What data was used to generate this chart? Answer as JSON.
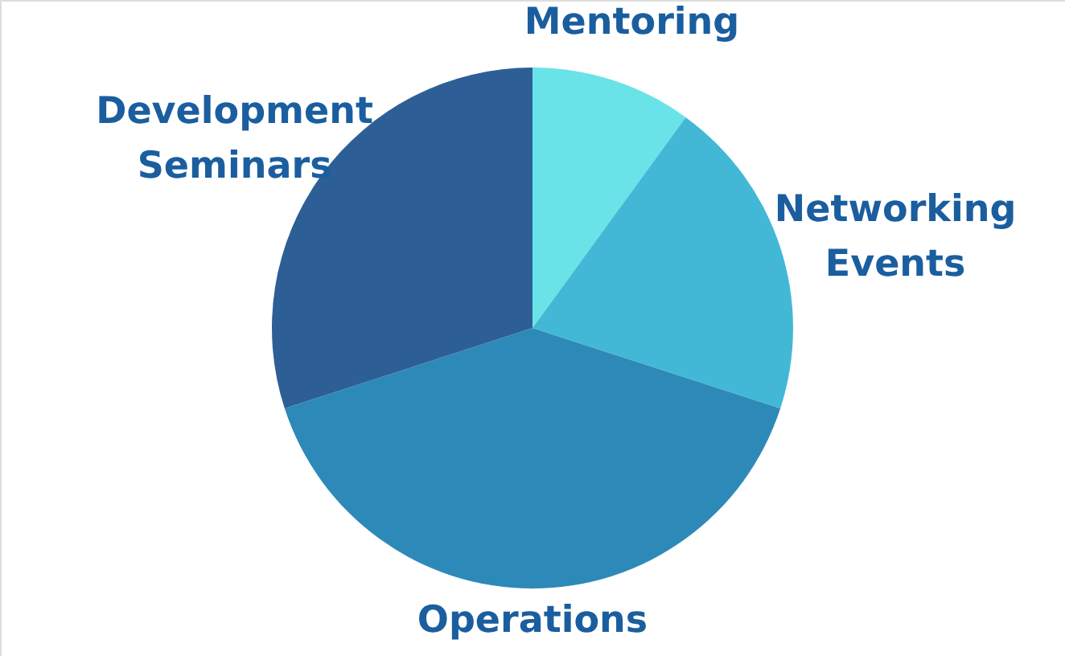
{
  "chart_data": {
    "type": "pie",
    "categories": [
      "Mentoring",
      "Networking Events",
      "Operations",
      "Development Seminars"
    ],
    "values": [
      10,
      20,
      40,
      30
    ],
    "colors": [
      "#6ae3e8",
      "#43b8d6",
      "#2d8ab8",
      "#2d5f96"
    ]
  }
}
